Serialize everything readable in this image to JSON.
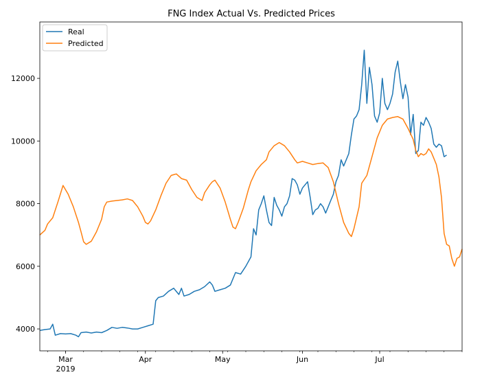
{
  "chart_data": {
    "type": "line",
    "title": "FNG Index Actual Vs. Predicted Prices",
    "xlabel": "",
    "ylabel": "",
    "ylim": [
      3300,
      13800
    ],
    "x_ticks": [
      {
        "day": 10,
        "label": "Mar",
        "sublabel": "2019"
      },
      {
        "day": 41,
        "label": "Apr",
        "sublabel": ""
      },
      {
        "day": 71,
        "label": "May",
        "sublabel": ""
      },
      {
        "day": 102,
        "label": "Jun",
        "sublabel": ""
      },
      {
        "day": 132,
        "label": "Jul",
        "sublabel": ""
      }
    ],
    "y_ticks": [
      4000,
      6000,
      8000,
      10000,
      12000
    ],
    "legend": {
      "placement": "upper-left",
      "entries": [
        "Real",
        "Predicted"
      ]
    },
    "grid": false,
    "series": [
      {
        "name": "Real",
        "color": "#1f77b4",
        "points": [
          [
            0,
            3950
          ],
          [
            2,
            3980
          ],
          [
            4,
            4000
          ],
          [
            5,
            4150
          ],
          [
            6,
            3800
          ],
          [
            8,
            3850
          ],
          [
            10,
            3840
          ],
          [
            12,
            3850
          ],
          [
            14,
            3800
          ],
          [
            15,
            3750
          ],
          [
            16,
            3880
          ],
          [
            18,
            3900
          ],
          [
            20,
            3870
          ],
          [
            22,
            3900
          ],
          [
            24,
            3880
          ],
          [
            26,
            3950
          ],
          [
            28,
            4050
          ],
          [
            30,
            4020
          ],
          [
            32,
            4050
          ],
          [
            34,
            4030
          ],
          [
            36,
            4000
          ],
          [
            38,
            4000
          ],
          [
            40,
            4050
          ],
          [
            42,
            4100
          ],
          [
            44,
            4150
          ],
          [
            45,
            4900
          ],
          [
            46,
            5000
          ],
          [
            48,
            5050
          ],
          [
            50,
            5200
          ],
          [
            52,
            5300
          ],
          [
            54,
            5100
          ],
          [
            55,
            5300
          ],
          [
            56,
            5050
          ],
          [
            58,
            5100
          ],
          [
            60,
            5200
          ],
          [
            62,
            5250
          ],
          [
            64,
            5350
          ],
          [
            66,
            5500
          ],
          [
            67,
            5400
          ],
          [
            68,
            5200
          ],
          [
            70,
            5250
          ],
          [
            72,
            5300
          ],
          [
            74,
            5400
          ],
          [
            76,
            5800
          ],
          [
            78,
            5750
          ],
          [
            80,
            6000
          ],
          [
            82,
            6300
          ],
          [
            83,
            7200
          ],
          [
            84,
            7000
          ],
          [
            85,
            7800
          ],
          [
            86,
            8000
          ],
          [
            87,
            8250
          ],
          [
            88,
            7800
          ],
          [
            89,
            7400
          ],
          [
            90,
            7300
          ],
          [
            91,
            8200
          ],
          [
            92,
            7950
          ],
          [
            93,
            7800
          ],
          [
            94,
            7600
          ],
          [
            95,
            7900
          ],
          [
            96,
            8000
          ],
          [
            97,
            8250
          ],
          [
            98,
            8800
          ],
          [
            99,
            8750
          ],
          [
            100,
            8600
          ],
          [
            101,
            8300
          ],
          [
            102,
            8500
          ],
          [
            103,
            8600
          ],
          [
            104,
            8700
          ],
          [
            105,
            8200
          ],
          [
            106,
            7650
          ],
          [
            107,
            7800
          ],
          [
            108,
            7850
          ],
          [
            109,
            8000
          ],
          [
            110,
            7900
          ],
          [
            111,
            7700
          ],
          [
            112,
            7900
          ],
          [
            113,
            8100
          ],
          [
            114,
            8300
          ],
          [
            115,
            8700
          ],
          [
            116,
            8900
          ],
          [
            117,
            9400
          ],
          [
            118,
            9200
          ],
          [
            119,
            9400
          ],
          [
            120,
            9600
          ],
          [
            121,
            10200
          ],
          [
            122,
            10700
          ],
          [
            123,
            10800
          ],
          [
            124,
            11000
          ],
          [
            125,
            11800
          ],
          [
            126,
            12900
          ],
          [
            127,
            11200
          ],
          [
            128,
            12350
          ],
          [
            129,
            11800
          ],
          [
            130,
            10800
          ],
          [
            131,
            10600
          ],
          [
            132,
            10900
          ],
          [
            133,
            12000
          ],
          [
            134,
            11200
          ],
          [
            135,
            11000
          ],
          [
            136,
            11200
          ],
          [
            137,
            11500
          ],
          [
            138,
            12200
          ],
          [
            139,
            12550
          ],
          [
            140,
            11900
          ],
          [
            141,
            11350
          ],
          [
            142,
            11800
          ],
          [
            143,
            11400
          ],
          [
            144,
            10200
          ],
          [
            145,
            10850
          ],
          [
            146,
            9600
          ],
          [
            147,
            9700
          ],
          [
            148,
            10600
          ],
          [
            149,
            10500
          ],
          [
            150,
            10750
          ],
          [
            151,
            10600
          ],
          [
            152,
            10400
          ],
          [
            153,
            9900
          ],
          [
            154,
            9800
          ],
          [
            155,
            9900
          ],
          [
            156,
            9850
          ],
          [
            157,
            9500
          ],
          [
            158,
            9550
          ]
        ]
      },
      {
        "name": "Predicted",
        "color": "#ff7f0e",
        "points": [
          [
            0,
            7000
          ],
          [
            2,
            7150
          ],
          [
            3,
            7350
          ],
          [
            5,
            7550
          ],
          [
            7,
            8050
          ],
          [
            9,
            8580
          ],
          [
            11,
            8300
          ],
          [
            13,
            7900
          ],
          [
            15,
            7400
          ],
          [
            16,
            7100
          ],
          [
            17,
            6780
          ],
          [
            18,
            6700
          ],
          [
            20,
            6800
          ],
          [
            22,
            7100
          ],
          [
            24,
            7500
          ],
          [
            25,
            7900
          ],
          [
            26,
            8050
          ],
          [
            28,
            8080
          ],
          [
            30,
            8100
          ],
          [
            32,
            8120
          ],
          [
            34,
            8150
          ],
          [
            36,
            8100
          ],
          [
            38,
            7900
          ],
          [
            40,
            7600
          ],
          [
            41,
            7400
          ],
          [
            42,
            7350
          ],
          [
            43,
            7450
          ],
          [
            45,
            7800
          ],
          [
            47,
            8250
          ],
          [
            49,
            8650
          ],
          [
            51,
            8900
          ],
          [
            53,
            8950
          ],
          [
            55,
            8800
          ],
          [
            57,
            8750
          ],
          [
            59,
            8450
          ],
          [
            61,
            8200
          ],
          [
            63,
            8100
          ],
          [
            64,
            8350
          ],
          [
            66,
            8600
          ],
          [
            67,
            8700
          ],
          [
            68,
            8750
          ],
          [
            70,
            8500
          ],
          [
            72,
            8050
          ],
          [
            74,
            7500
          ],
          [
            75,
            7250
          ],
          [
            76,
            7200
          ],
          [
            77,
            7400
          ],
          [
            79,
            7850
          ],
          [
            81,
            8450
          ],
          [
            82,
            8700
          ],
          [
            84,
            9050
          ],
          [
            86,
            9250
          ],
          [
            88,
            9400
          ],
          [
            89,
            9650
          ],
          [
            91,
            9850
          ],
          [
            93,
            9950
          ],
          [
            95,
            9850
          ],
          [
            97,
            9650
          ],
          [
            99,
            9400
          ],
          [
            100,
            9300
          ],
          [
            102,
            9350
          ],
          [
            104,
            9300
          ],
          [
            106,
            9250
          ],
          [
            108,
            9280
          ],
          [
            110,
            9300
          ],
          [
            112,
            9150
          ],
          [
            114,
            8700
          ],
          [
            116,
            8000
          ],
          [
            118,
            7400
          ],
          [
            120,
            7050
          ],
          [
            121,
            6950
          ],
          [
            122,
            7200
          ],
          [
            124,
            7900
          ],
          [
            125,
            8650
          ],
          [
            127,
            8900
          ],
          [
            129,
            9500
          ],
          [
            131,
            10100
          ],
          [
            133,
            10500
          ],
          [
            135,
            10700
          ],
          [
            137,
            10750
          ],
          [
            139,
            10780
          ],
          [
            141,
            10700
          ],
          [
            143,
            10400
          ],
          [
            145,
            10050
          ],
          [
            146,
            9700
          ],
          [
            147,
            9500
          ],
          [
            148,
            9600
          ],
          [
            149,
            9550
          ],
          [
            150,
            9600
          ],
          [
            151,
            9750
          ],
          [
            152,
            9650
          ],
          [
            153,
            9450
          ],
          [
            154,
            9250
          ],
          [
            155,
            8850
          ],
          [
            156,
            8200
          ],
          [
            157,
            7050
          ],
          [
            158,
            6700
          ],
          [
            159,
            6650
          ],
          [
            160,
            6250
          ],
          [
            161,
            6000
          ],
          [
            162,
            6250
          ],
          [
            163,
            6300
          ],
          [
            164,
            6550
          ]
        ]
      }
    ]
  }
}
